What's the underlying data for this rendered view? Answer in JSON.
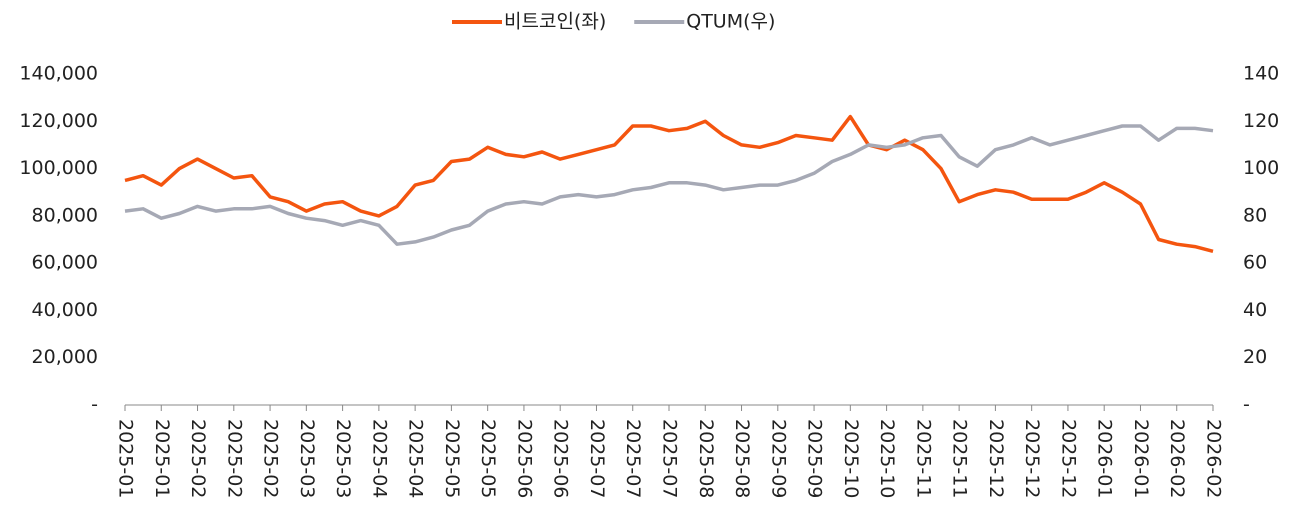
{
  "chart_data": {
    "type": "line",
    "categories": [
      "2025-01",
      null,
      "2025-01",
      null,
      "2025-02",
      null,
      "2025-02",
      null,
      "2025-02",
      null,
      "2025-03",
      null,
      "2025-03",
      null,
      "2025-04",
      null,
      "2025-04",
      null,
      "2025-05",
      null,
      "2025-05",
      null,
      "2025-06",
      null,
      "2025-06",
      null,
      "2025-07",
      null,
      "2025-07",
      null,
      "2025-07",
      null,
      "2025-08",
      null,
      "2025-08",
      null,
      "2025-09",
      null,
      "2025-09",
      null,
      "2025-10",
      null,
      "2025-10",
      null,
      "2025-11",
      null,
      "2025-11",
      null,
      "2025-12",
      null,
      "2025-12",
      null,
      "2025-12",
      null,
      "2026-01",
      null,
      "2026-01",
      null,
      "2026-02",
      null,
      "2026-02"
    ],
    "series": [
      {
        "name": "비트코인(좌)",
        "color": "#f4550f",
        "axis": "y",
        "values": [
          95000,
          97000,
          93000,
          100000,
          104000,
          100000,
          96000,
          97000,
          88000,
          86000,
          82000,
          85000,
          86000,
          82000,
          80000,
          84000,
          93000,
          95000,
          103000,
          104000,
          109000,
          106000,
          105000,
          107000,
          104000,
          106000,
          108000,
          110000,
          118000,
          118000,
          116000,
          117000,
          120000,
          114000,
          110000,
          109000,
          111000,
          114000,
          113000,
          112000,
          122000,
          110000,
          108000,
          112000,
          108000,
          100000,
          86000,
          89000,
          91000,
          90000,
          87000,
          87000,
          87000,
          90000,
          94000,
          90000,
          85000,
          70000,
          68000,
          67000,
          65000
        ]
      },
      {
        "name": "QTUM(우)",
        "color": "#a6a9b5",
        "axis": "y2",
        "values": [
          82,
          83,
          79,
          81,
          84,
          82,
          83,
          83,
          84,
          81,
          79,
          78,
          76,
          78,
          76,
          68,
          69,
          71,
          74,
          76,
          82,
          85,
          86,
          85,
          88,
          89,
          88,
          89,
          91,
          92,
          94,
          94,
          93,
          91,
          92,
          93,
          93,
          95,
          98,
          103,
          106,
          110,
          109,
          110,
          113,
          114,
          105,
          101,
          108,
          110,
          113,
          110,
          112,
          114,
          116,
          118,
          118,
          112,
          117,
          117,
          116
        ]
      }
    ],
    "ylim": [
      0,
      140000
    ],
    "yticks": [
      {
        "value": 0,
        "label": "-"
      },
      {
        "value": 20000,
        "label": "20,000"
      },
      {
        "value": 40000,
        "label": "40,000"
      },
      {
        "value": 60000,
        "label": "60,000"
      },
      {
        "value": 80000,
        "label": "80,000"
      },
      {
        "value": 100000,
        "label": "100,000"
      },
      {
        "value": 120000,
        "label": "120,000"
      },
      {
        "value": 140000,
        "label": "140,000"
      }
    ],
    "y2lim": [
      0,
      140
    ],
    "y2ticks": [
      {
        "value": 0,
        "label": "-"
      },
      20,
      40,
      60,
      80,
      100,
      120,
      140
    ],
    "legend": "top"
  }
}
